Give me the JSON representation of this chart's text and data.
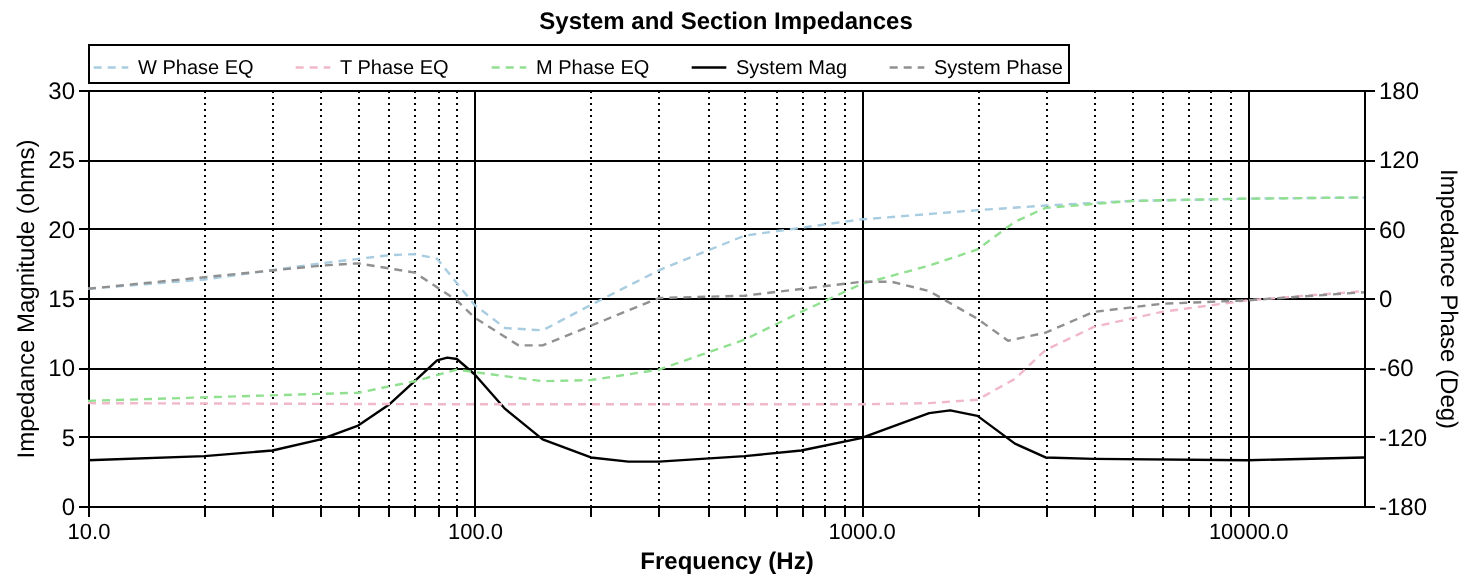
{
  "chart_data": {
    "type": "line",
    "title": "System and Section Impedances",
    "xlabel": "Frequency (Hz)",
    "ylabel": "Impedance Magnitude (ohms)",
    "y2label": "Impedance Phase (Deg)",
    "log": "x",
    "grid": true,
    "legend": "top",
    "marker": "none",
    "xlim": [
      10,
      20000
    ],
    "xticks": [
      {
        "value": 10,
        "label": "10.0"
      },
      {
        "value": 20,
        "label": null
      },
      {
        "value": 30,
        "label": null
      },
      {
        "value": 40,
        "label": null
      },
      {
        "value": 50,
        "label": null
      },
      {
        "value": 60,
        "label": null
      },
      {
        "value": 70,
        "label": null
      },
      {
        "value": 80,
        "label": null
      },
      {
        "value": 90,
        "label": null
      },
      {
        "value": 100,
        "label": "100.0"
      },
      {
        "value": 200,
        "label": null
      },
      {
        "value": 300,
        "label": null
      },
      {
        "value": 400,
        "label": null
      },
      {
        "value": 500,
        "label": null
      },
      {
        "value": 600,
        "label": null
      },
      {
        "value": 700,
        "label": null
      },
      {
        "value": 800,
        "label": null
      },
      {
        "value": 900,
        "label": null
      },
      {
        "value": 1000,
        "label": "1000.0"
      },
      {
        "value": 2000,
        "label": null
      },
      {
        "value": 3000,
        "label": null
      },
      {
        "value": 4000,
        "label": null
      },
      {
        "value": 5000,
        "label": null
      },
      {
        "value": 6000,
        "label": null
      },
      {
        "value": 7000,
        "label": null
      },
      {
        "value": 8000,
        "label": null
      },
      {
        "value": 9000,
        "label": null
      },
      {
        "value": 10000,
        "label": "10000.0"
      }
    ],
    "ylim": [
      0,
      30
    ],
    "yticks": [
      0,
      5,
      10,
      15,
      20,
      25,
      30
    ],
    "y2lim": [
      -180,
      180
    ],
    "y2ticks": [
      -180,
      -120,
      -60,
      0,
      60,
      120,
      180
    ],
    "series": [
      {
        "name": "W Phase EQ",
        "color": "#a8cce0",
        "axis": "y2",
        "line_style": "dashed",
        "x": [
          10,
          20,
          40,
          60,
          70,
          80,
          100,
          120,
          150,
          200,
          300,
          500,
          1000,
          2000,
          3000,
          5000,
          10000,
          20000
        ],
        "values": [
          8,
          16,
          30,
          37,
          38,
          34,
          -6,
          -26,
          -28,
          -6,
          24,
          54,
          68,
          76,
          80,
          84,
          86,
          87
        ]
      },
      {
        "name": "T Phase EQ",
        "color": "#f0b8c8",
        "axis": "y2",
        "line_style": "dashed",
        "x": [
          10,
          100,
          500,
          1000,
          1500,
          2000,
          2500,
          3000,
          4000,
          6000,
          10000,
          20000
        ],
        "values": [
          -91,
          -92,
          -92,
          -92,
          -91,
          -88,
          -70,
          -45,
          -25,
          -12,
          -2,
          6
        ]
      },
      {
        "name": "M Phase EQ",
        "color": "#90e090",
        "axis": "y2",
        "line_style": "dashed",
        "x": [
          10,
          50,
          70,
          90,
          110,
          150,
          200,
          300,
          500,
          700,
          1000,
          1500,
          2000,
          2500,
          3000,
          5000,
          10000,
          20000
        ],
        "values": [
          -89,
          -82,
          -72,
          -62,
          -66,
          -72,
          -71,
          -62,
          -36,
          -12,
          12,
          28,
          42,
          66,
          78,
          84,
          86,
          87
        ]
      },
      {
        "name": "System Mag",
        "color": "#000000",
        "line_style": "solid",
        "x": [
          10,
          20,
          30,
          40,
          50,
          60,
          70,
          80,
          85,
          90,
          100,
          120,
          150,
          200,
          250,
          300,
          500,
          700,
          1000,
          1500,
          1700,
          2000,
          2500,
          3000,
          4000,
          10000,
          20000
        ],
        "values": [
          3.3,
          3.6,
          4.0,
          4.8,
          5.8,
          7.3,
          9.0,
          10.5,
          10.7,
          10.6,
          9.5,
          7.0,
          4.8,
          3.5,
          3.2,
          3.2,
          3.6,
          4.0,
          4.9,
          6.7,
          6.9,
          6.5,
          4.5,
          3.5,
          3.4,
          3.3,
          3.5
        ]
      },
      {
        "name": "System Phase",
        "color": "#909090",
        "axis": "y2",
        "line_style": "dashed",
        "x": [
          10,
          40,
          50,
          70,
          90,
          100,
          130,
          150,
          200,
          300,
          500,
          1000,
          1200,
          1500,
          2000,
          2400,
          3000,
          4000,
          6000,
          10000,
          20000
        ],
        "values": [
          8,
          28,
          30,
          22,
          -2,
          -17,
          -41,
          -41,
          -24,
          0,
          2,
          14,
          14,
          6,
          -18,
          -37,
          -30,
          -12,
          -5,
          -2,
          5
        ]
      }
    ]
  }
}
